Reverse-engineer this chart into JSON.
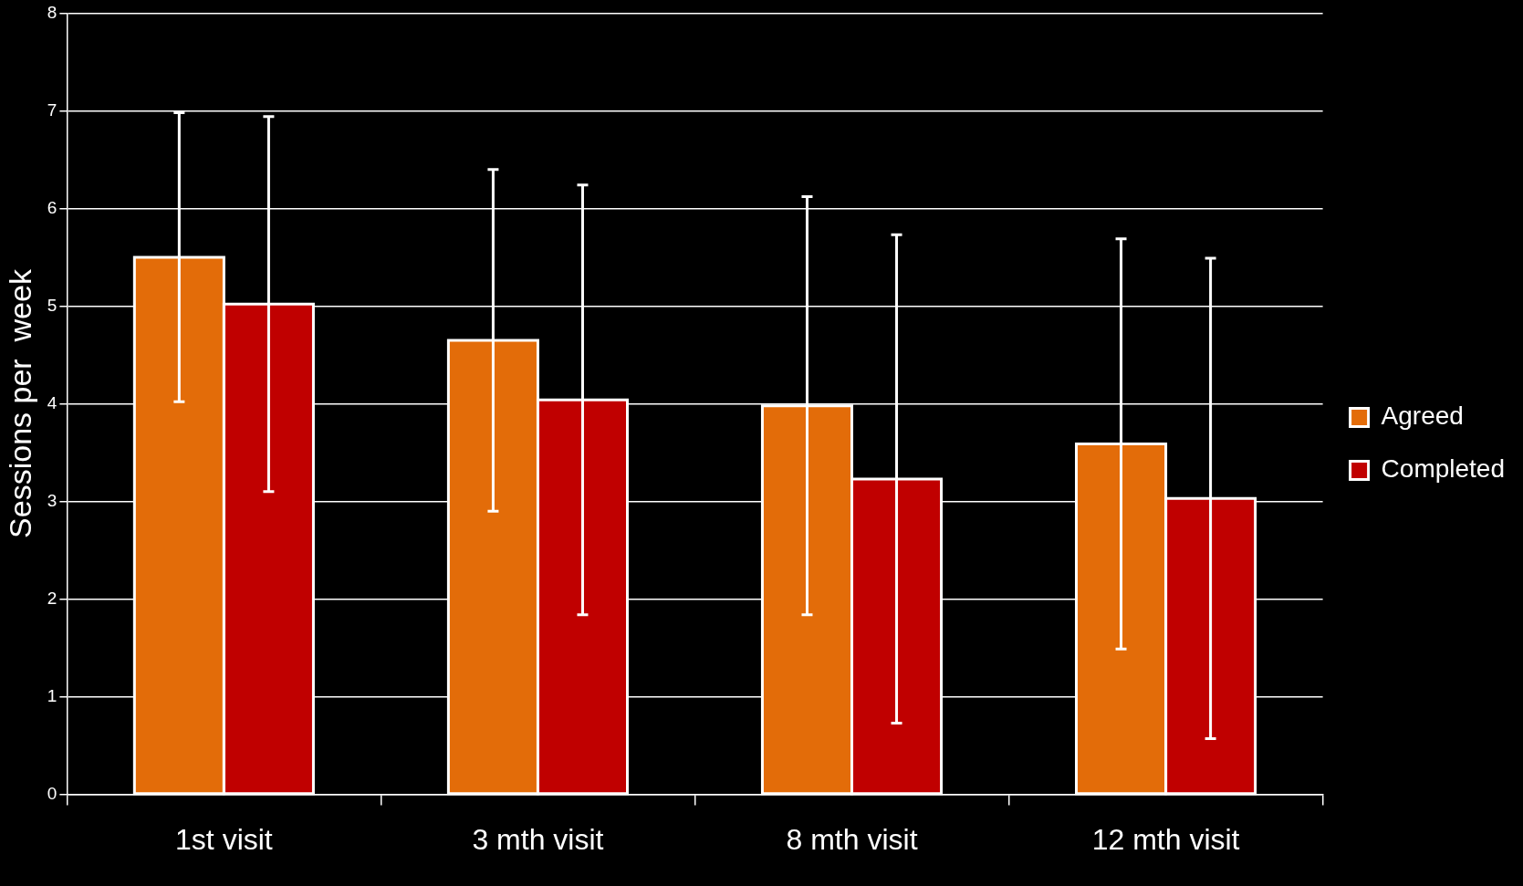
{
  "chart_data": {
    "type": "bar",
    "ylabel": "Sessions per  week",
    "categories": [
      "1st visit",
      "3 mth visit",
      "8 mth visit",
      "12 mth visit"
    ],
    "series": [
      {
        "name": "Agreed",
        "color": "#e36c09",
        "values": [
          5.5,
          4.65,
          3.98,
          3.59
        ],
        "errors": [
          1.48,
          1.75,
          2.14,
          2.1
        ]
      },
      {
        "name": "Completed",
        "color": "#c00000",
        "values": [
          5.02,
          4.04,
          3.23,
          3.03
        ],
        "errors": [
          1.92,
          2.2,
          2.5,
          2.46
        ]
      }
    ],
    "ylim": [
      0,
      8
    ],
    "yticks": [
      0,
      1,
      2,
      3,
      4,
      5,
      6,
      7,
      8
    ],
    "grid": "y",
    "legend": "right"
  }
}
